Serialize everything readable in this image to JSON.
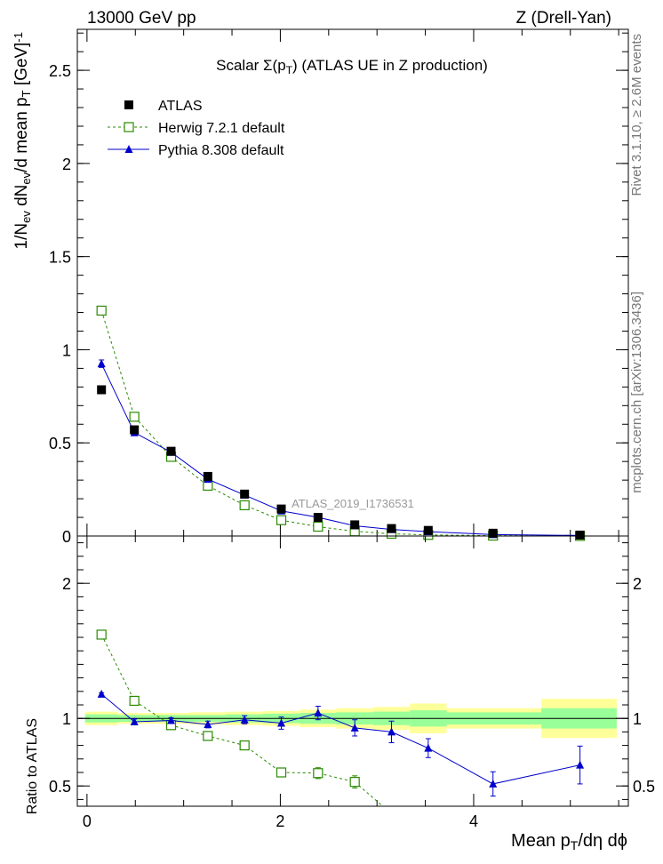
{
  "header": {
    "left": "13000 GeV pp",
    "right": "Z (Drell-Yan)"
  },
  "side_labels": {
    "rivet": "Rivet 3.1.10, ≥ 2.6M events",
    "source": "mcplots.cern.ch [arXiv:1306.3436]"
  },
  "watermark": "ATLAS_2019_I1736531",
  "colors": {
    "atlas": "#000000",
    "herwig": "#2a8a00",
    "pythia": "#0000cc",
    "band_outer": "#ffff99",
    "band_inner": "#99ff99"
  },
  "chart_data": [
    {
      "type": "scatter",
      "panel": "main",
      "title": "Scalar Σ(p_T) (ATLAS UE in Z production)",
      "ylabel": "1/N_ev dN_ev/d mean p_T [GeV]^-1",
      "xlim": [
        -0.1,
        5.6
      ],
      "ylim": [
        0,
        2.72
      ],
      "yticks": [
        0,
        0.5,
        1,
        1.5,
        2,
        2.5
      ],
      "ytick_labels": [
        "0",
        "0.5",
        "1",
        "1.5",
        "2",
        "2.5"
      ],
      "legend": {
        "position": "top-left",
        "entries": [
          "ATLAS",
          "Herwig 7.2.1 default",
          "Pythia 8.308 default"
        ]
      },
      "series": [
        {
          "name": "ATLAS",
          "marker": "filled-square",
          "x": [
            0.15,
            0.49,
            0.87,
            1.25,
            1.63,
            2.01,
            2.39,
            2.77,
            3.15,
            3.53,
            4.2,
            5.1
          ],
          "y": [
            0.785,
            0.57,
            0.455,
            0.32,
            0.225,
            0.145,
            0.1,
            0.06,
            0.04,
            0.03,
            0.015,
            0.005
          ]
        },
        {
          "name": "Herwig 7.2.1 default",
          "marker": "open-square",
          "line": "dashed",
          "x": [
            0.15,
            0.49,
            0.87,
            1.25,
            1.63,
            2.01,
            2.39,
            2.77,
            3.15,
            3.53,
            4.2,
            5.1
          ],
          "y": [
            1.21,
            0.64,
            0.425,
            0.27,
            0.165,
            0.085,
            0.05,
            0.025,
            0.012,
            0.006,
            0.002,
            0.0005
          ]
        },
        {
          "name": "Pythia 8.308 default",
          "marker": "filled-triangle",
          "line": "solid",
          "x": [
            0.15,
            0.49,
            0.87,
            1.25,
            1.63,
            2.01,
            2.39,
            2.77,
            3.15,
            3.53,
            4.2,
            5.1
          ],
          "y": [
            0.925,
            0.555,
            0.45,
            0.305,
            0.22,
            0.135,
            0.1,
            0.055,
            0.035,
            0.023,
            0.008,
            0.003
          ],
          "yerr": [
            0.02,
            0.01,
            0.008,
            0.006,
            0.005,
            0.004,
            0.004,
            0.003,
            0.002,
            0.002,
            0.001,
            0.001
          ]
        }
      ]
    },
    {
      "type": "scatter",
      "panel": "ratio",
      "ylabel": "Ratio to ATLAS",
      "xlabel": "Mean p_T/dη dϕ",
      "xlim": [
        -0.1,
        5.6
      ],
      "ylim": [
        0.35,
        2.35
      ],
      "xticks": [
        0,
        2,
        4
      ],
      "xtick_labels": [
        "0",
        "2",
        "4"
      ],
      "yticks": [
        0.5,
        1,
        2
      ],
      "ytick_labels": [
        "0.5",
        "1",
        "2"
      ],
      "reference_line": 1,
      "bands": [
        {
          "x0": -0.02,
          "x1": 0.32,
          "outer": 0.05,
          "inner": 0.03
        },
        {
          "x0": 0.32,
          "x1": 0.68,
          "outer": 0.04,
          "inner": 0.025
        },
        {
          "x0": 0.68,
          "x1": 1.06,
          "outer": 0.04,
          "inner": 0.025
        },
        {
          "x0": 1.06,
          "x1": 1.44,
          "outer": 0.045,
          "inner": 0.025
        },
        {
          "x0": 1.44,
          "x1": 1.82,
          "outer": 0.05,
          "inner": 0.03
        },
        {
          "x0": 1.82,
          "x1": 2.2,
          "outer": 0.055,
          "inner": 0.035
        },
        {
          "x0": 2.2,
          "x1": 2.58,
          "outer": 0.065,
          "inner": 0.04
        },
        {
          "x0": 2.58,
          "x1": 2.96,
          "outer": 0.075,
          "inner": 0.045
        },
        {
          "x0": 2.96,
          "x1": 3.34,
          "outer": 0.085,
          "inner": 0.05
        },
        {
          "x0": 3.34,
          "x1": 3.72,
          "outer": 0.11,
          "inner": 0.06
        },
        {
          "x0": 3.72,
          "x1": 4.7,
          "outer": 0.075,
          "inner": 0.045
        },
        {
          "x0": 4.7,
          "x1": 5.48,
          "outer": 0.145,
          "inner": 0.075
        }
      ],
      "series": [
        {
          "name": "Herwig 7.2.1 default",
          "marker": "open-square",
          "line": "dashed",
          "x": [
            0.15,
            0.49,
            0.87,
            1.25,
            1.63,
            2.01,
            2.39,
            2.77
          ],
          "y": [
            1.62,
            1.13,
            0.95,
            0.87,
            0.8,
            0.6,
            0.595,
            0.53
          ],
          "yerr": [
            0.01,
            0.01,
            0.01,
            0.01,
            0.015,
            0.03,
            0.04,
            0.045
          ],
          "tail": {
            "x": [
              2.77,
              3.3
            ],
            "y": [
              0.53,
              0.2
            ]
          }
        },
        {
          "name": "Pythia 8.308 default",
          "marker": "filled-triangle",
          "line": "solid",
          "x": [
            0.15,
            0.49,
            0.87,
            1.25,
            1.63,
            2.01,
            2.39,
            2.77,
            3.15,
            3.53,
            4.2,
            5.1
          ],
          "y": [
            1.18,
            0.975,
            0.985,
            0.955,
            0.99,
            0.965,
            1.04,
            0.93,
            0.9,
            0.78,
            0.515,
            0.655
          ],
          "yerr": [
            0.01,
            0.02,
            0.02,
            0.025,
            0.03,
            0.045,
            0.05,
            0.06,
            0.08,
            0.07,
            0.09,
            0.14
          ]
        }
      ]
    }
  ]
}
